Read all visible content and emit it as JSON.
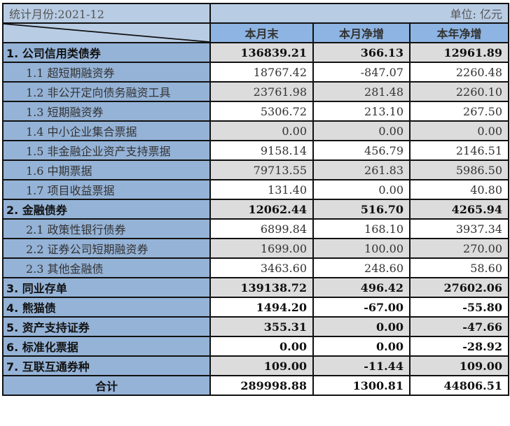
{
  "header": {
    "period_label": "统计月份:2021-12",
    "unit_label": "单位: 亿元",
    "columns": [
      "本月末",
      "本月净增",
      "本年净增"
    ]
  },
  "rows": [
    {
      "label": "1. 公司信用类债券",
      "level": "main",
      "values": [
        "136839.21",
        "366.13",
        "12961.89"
      ]
    },
    {
      "label": "1.1 超短期融资券",
      "level": "sub",
      "values": [
        "18767.42",
        "-847.07",
        "2260.48"
      ]
    },
    {
      "label": "1.2 非公开定向债务融资工具",
      "level": "sub",
      "values": [
        "23761.98",
        "281.48",
        "2260.10"
      ]
    },
    {
      "label": "1.3 短期融资券",
      "level": "sub",
      "values": [
        "5306.72",
        "213.10",
        "267.50"
      ]
    },
    {
      "label": "1.4 中小企业集合票据",
      "level": "sub",
      "values": [
        "0.00",
        "0.00",
        "0.00"
      ]
    },
    {
      "label": "1.5 非金融企业资产支持票据",
      "level": "sub",
      "values": [
        "9158.14",
        "456.79",
        "2146.51"
      ]
    },
    {
      "label": "1.6 中期票据",
      "level": "sub",
      "values": [
        "79713.55",
        "261.83",
        "5986.50"
      ]
    },
    {
      "label": "1.7 项目收益票据",
      "level": "sub",
      "values": [
        "131.40",
        "0.00",
        "40.80"
      ]
    },
    {
      "label": "2. 金融债券",
      "level": "main",
      "values": [
        "12062.44",
        "516.70",
        "4265.94"
      ]
    },
    {
      "label": "2.1 政策性银行债券",
      "level": "sub",
      "values": [
        "6899.84",
        "168.10",
        "3937.34"
      ]
    },
    {
      "label": "2.2 证券公司短期融资券",
      "level": "sub",
      "values": [
        "1699.00",
        "100.00",
        "270.00"
      ]
    },
    {
      "label": "2.3 其他金融债",
      "level": "sub",
      "values": [
        "3463.60",
        "248.60",
        "58.60"
      ]
    },
    {
      "label": "3. 同业存单",
      "level": "main",
      "values": [
        "139138.72",
        "496.42",
        "27602.06"
      ]
    },
    {
      "label": "4. 熊猫债",
      "level": "main",
      "values": [
        "1494.20",
        "-67.00",
        "-55.80"
      ]
    },
    {
      "label": "5. 资产支持证券",
      "level": "main",
      "values": [
        "355.31",
        "0.00",
        "-47.66"
      ]
    },
    {
      "label": "6. 标准化票据",
      "level": "main",
      "values": [
        "0.00",
        "0.00",
        "-28.92"
      ]
    },
    {
      "label": "7. 互联互通券种",
      "level": "main",
      "values": [
        "109.00",
        "-11.44",
        "109.00"
      ]
    }
  ],
  "total": {
    "label": "合计",
    "values": [
      "289998.88",
      "1300.81",
      "44806.51"
    ]
  },
  "colors": {
    "header_light": "#b8cce4",
    "header_col": "#8db4e2",
    "label_bg": "#95b3d7",
    "stripe_grey": "#dcdcdc",
    "border": "#111111"
  }
}
